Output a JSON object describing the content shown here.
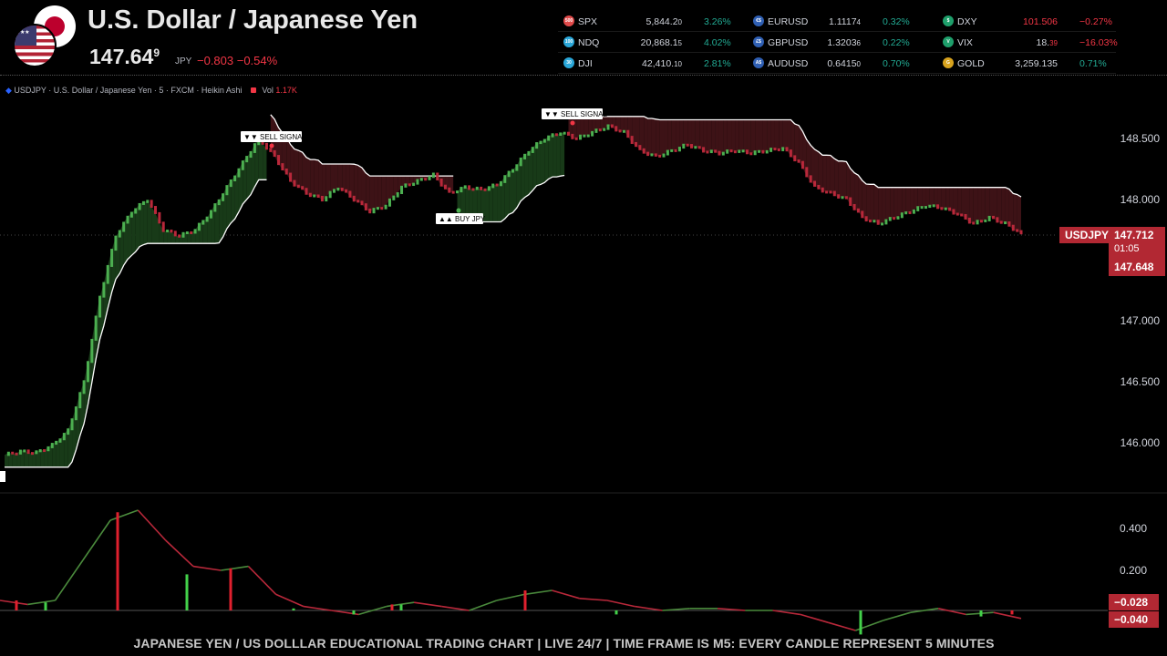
{
  "header": {
    "title": "U.S. Dollar / Japanese Yen",
    "price_main": "147.64",
    "price_sup": "9",
    "price_currency": "JPY",
    "price_change": "−0.803  −0.54%"
  },
  "tickers": [
    [
      {
        "icon": "500",
        "icon_color": "#e04a4a",
        "sym": "SPX",
        "price": "5,844.2",
        "price_tail": "0",
        "chg": "3.26%",
        "dir": "up"
      },
      {
        "icon": "100",
        "icon_color": "#2aa7d9",
        "sym": "NDQ",
        "price": "20,868.1",
        "price_tail": "5",
        "chg": "4.02%",
        "dir": "up"
      },
      {
        "icon": "30",
        "icon_color": "#2aa7d9",
        "sym": "DJI",
        "price": "42,410.",
        "price_tail": "10",
        "chg": "2.81%",
        "dir": "up"
      }
    ],
    [
      {
        "icon": "€$",
        "icon_color": "#2f5fb3",
        "sym": "EURUSD",
        "price": "1.1117",
        "price_tail": "4",
        "chg": "0.32%",
        "dir": "up"
      },
      {
        "icon": "£$",
        "icon_color": "#2f5fb3",
        "sym": "GBPUSD",
        "price": "1.3203",
        "price_tail": "6",
        "chg": "0.22%",
        "dir": "up"
      },
      {
        "icon": "A$",
        "icon_color": "#2f5fb3",
        "sym": "AUDUSD",
        "price": "0.6415",
        "price_tail": "0",
        "chg": "0.70%",
        "dir": "up"
      }
    ],
    [
      {
        "icon": "$",
        "icon_color": "#1e9f6b",
        "sym": "DXY",
        "price": "101.506",
        "price_tail": "",
        "chg": "−0.27%",
        "dir": "down"
      },
      {
        "icon": "V",
        "icon_color": "#1e9f6b",
        "sym": "VIX",
        "price": "18.",
        "price_tail": "39",
        "chg": "−16.03%",
        "dir": "down"
      },
      {
        "icon": "G",
        "icon_color": "#d8a31e",
        "sym": "GOLD",
        "price": "3,259.135",
        "price_tail": "",
        "chg": "0.71%",
        "dir": "up"
      }
    ]
  ],
  "chart_header": {
    "symbol_line": "USDJPY · U.S. Dollar / Japanese Yen · 5 · FXCM · Heikin Ashi",
    "vol_label": "Vol",
    "vol_value": "1.17K"
  },
  "signals": {
    "sell1": "▼▼ SELL SIGNAL",
    "sell2": "▼▼ SELL SIGNAL",
    "buy": "▲▲ BUY JPY"
  },
  "price_tags": {
    "symbol": "USDJPY",
    "last": "147.712",
    "countdown": "01:05",
    "bid": "147.648"
  },
  "osc_tags": {
    "v1": "−0.028",
    "v2": "−0.040"
  },
  "footer": "JAPANESE YEN / US DOLLLAR EDUCATIONAL TRADING CHART |  LIVE 24/7  |  TIME FRAME IS M5: EVERY CANDLE REPRESENT 5 MINUTES",
  "chart_data": [
    {
      "type": "line",
      "title": "USDJPY · U.S. Dollar / Japanese Yen · 5 · FXCM · Heikin Ashi",
      "y_ticks": [
        "148.500",
        "148.000",
        "147.000",
        "146.500",
        "146.000"
      ],
      "ylim": [
        145.9,
        148.6
      ],
      "series": [
        {
          "values": [
            145.9,
            145.93,
            145.92,
            145.98,
            146.1,
            146.5,
            147.2,
            147.7,
            147.9,
            148.0,
            147.75,
            147.7,
            147.75,
            147.9,
            148.1,
            148.3,
            148.5,
            148.35,
            148.15,
            148.05,
            148.0,
            148.1,
            148.0,
            147.9,
            147.95,
            148.1,
            148.15,
            148.2,
            148.05,
            148.1,
            148.08,
            148.12,
            148.25,
            148.4,
            148.5,
            148.55,
            148.5,
            148.55,
            148.6,
            148.55,
            148.4,
            148.35,
            148.4,
            148.45,
            148.4,
            148.38,
            148.4,
            148.38,
            148.4,
            148.42,
            148.3,
            148.1,
            148.05,
            148.0,
            147.85,
            147.8,
            147.85,
            147.9,
            147.95,
            147.93,
            147.88,
            147.8,
            147.85,
            147.8,
            147.72
          ]
        }
      ]
    },
    {
      "type": "line",
      "y_ticks": [
        "0.400",
        "0.200"
      ],
      "ylim": [
        -0.1,
        0.5
      ],
      "series": [
        {
          "values": [
            0.05,
            0.03,
            0.05,
            0.25,
            0.45,
            0.5,
            0.35,
            0.22,
            0.2,
            0.22,
            0.08,
            0.02,
            0.0,
            -0.02,
            0.02,
            0.04,
            0.02,
            0.0,
            0.05,
            0.08,
            0.1,
            0.06,
            0.05,
            0.02,
            0.0,
            0.01,
            0.01,
            0.0,
            0.0,
            -0.02,
            -0.06,
            -0.1,
            -0.05,
            -0.01,
            0.01,
            -0.02,
            -0.01,
            -0.04
          ]
        }
      ]
    }
  ]
}
